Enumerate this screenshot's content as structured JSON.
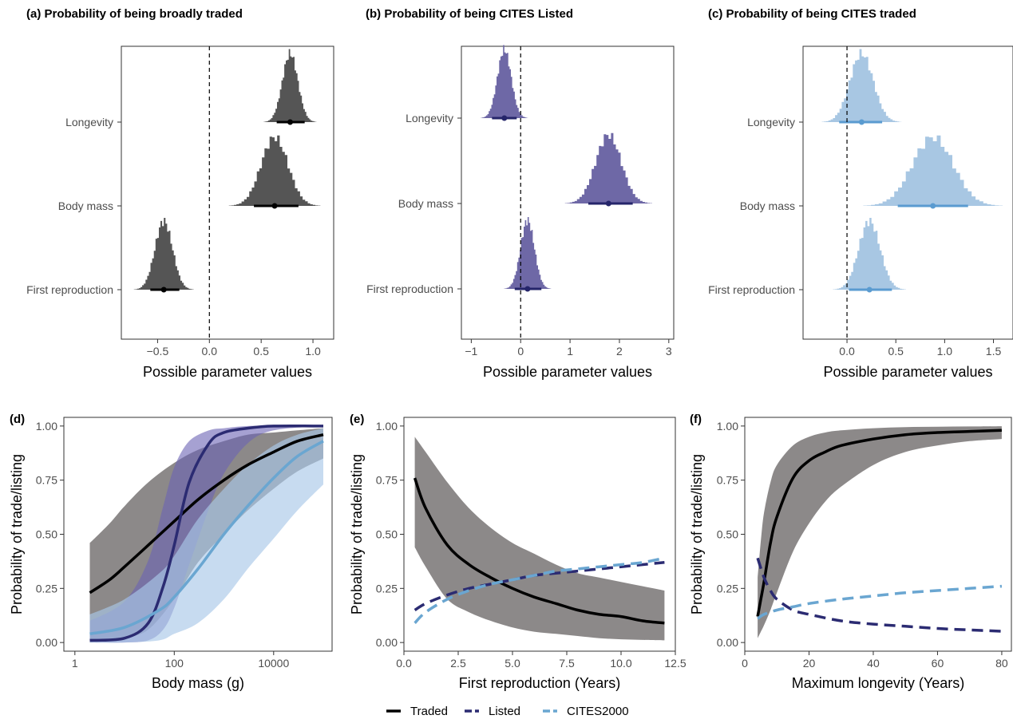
{
  "colors": {
    "traded": "#000000",
    "listed": "#2b2b72",
    "cites2000": "#6aa6d1",
    "hist_a": "#555555",
    "hist_b": "#6e68a6",
    "hist_c": "#a8c7e3",
    "interval_a": "#000000",
    "interval_b": "#25256a",
    "interval_c": "#5a9bd0",
    "ribbon_traded": "#6f6b6b",
    "ribbon_listed": "#6b63b4",
    "ribbon_cites": "#a9c8e8"
  },
  "legend": {
    "items": [
      {
        "label": "Traded",
        "color": "#000000",
        "dash": "solid"
      },
      {
        "label": "Listed",
        "color": "#2b2b72",
        "dash": "dashed"
      },
      {
        "label": "CITES2000",
        "color": "#6aa6d1",
        "dash": "dashed"
      }
    ]
  },
  "chart_data": [
    {
      "id": "a",
      "type": "histogram",
      "title": "(a) Probability of being broadly traded",
      "xlabel": "Possible parameter values",
      "ylabel": "",
      "xlim": [
        -0.85,
        1.2
      ],
      "xticks": [
        -0.5,
        0,
        0.5,
        1
      ],
      "xtick_labels": [
        "−0.5",
        "0.0",
        "0.5",
        "1.0"
      ],
      "reference_line": 0,
      "categories": [
        "Longevity",
        "Body mass",
        "First reproduction"
      ],
      "params": [
        {
          "name": "Longevity",
          "mean": 0.78,
          "sd": 0.075,
          "interval": [
            0.65,
            0.92
          ]
        },
        {
          "name": "Body mass",
          "mean": 0.63,
          "sd": 0.13,
          "interval": [
            0.43,
            0.86
          ]
        },
        {
          "name": "First reproduction",
          "mean": -0.44,
          "sd": 0.085,
          "interval": [
            -0.57,
            -0.29
          ]
        }
      ]
    },
    {
      "id": "b",
      "type": "histogram",
      "title": "(b) Probability of being CITES Listed",
      "xlabel": "Possible parameter values",
      "ylabel": "",
      "xlim": [
        -1.2,
        3.1
      ],
      "xticks": [
        -1,
        0,
        1,
        2,
        3
      ],
      "xtick_labels": [
        "−1",
        "0",
        "1",
        "2",
        "3"
      ],
      "reference_line": 0,
      "categories": [
        "Longevity",
        "Body mass",
        "First reproduction"
      ],
      "params": [
        {
          "name": "Longevity",
          "mean": -0.33,
          "sd": 0.14,
          "interval": [
            -0.58,
            -0.08
          ]
        },
        {
          "name": "Body mass",
          "mean": 1.78,
          "sd": 0.26,
          "interval": [
            1.37,
            2.27
          ]
        },
        {
          "name": "First reproduction",
          "mean": 0.14,
          "sd": 0.14,
          "interval": [
            -0.12,
            0.42
          ]
        }
      ]
    },
    {
      "id": "c",
      "type": "histogram",
      "title": "(c) Probability of being CITES traded",
      "xlabel": "Possible parameter values",
      "ylabel": "",
      "xlim": [
        -0.45,
        1.7
      ],
      "xticks": [
        0,
        0.5,
        1,
        1.5
      ],
      "xtick_labels": [
        "0.0",
        "0.5",
        "1.0",
        "1.5"
      ],
      "reference_line": 0,
      "categories": [
        "Longevity",
        "Body mass",
        "First reproduction"
      ],
      "params": [
        {
          "name": "Longevity",
          "mean": 0.15,
          "sd": 0.12,
          "interval": [
            -0.08,
            0.36
          ]
        },
        {
          "name": "Body mass",
          "mean": 0.88,
          "sd": 0.21,
          "interval": [
            0.52,
            1.24
          ]
        },
        {
          "name": "First reproduction",
          "mean": 0.23,
          "sd": 0.11,
          "interval": [
            0.02,
            0.46
          ]
        }
      ]
    },
    {
      "id": "d",
      "type": "line",
      "label": "(d)",
      "xlabel": "Body mass (g)",
      "ylabel": "Probability of trade/listing",
      "xscale": "log10",
      "xlim": [
        0.6,
        150000
      ],
      "ylim": [
        -0.04,
        1.04
      ],
      "xticks": [
        1,
        100,
        10000
      ],
      "xtick_labels": [
        "1",
        "100",
        "10000"
      ],
      "yticks": [
        0,
        0.25,
        0.5,
        0.75,
        1
      ],
      "ytick_labels": [
        "0.00",
        "0.25",
        "0.50",
        "0.75",
        "1.00"
      ],
      "series": [
        {
          "name": "Traded",
          "line": "solid",
          "x": [
            2,
            5,
            10,
            30,
            100,
            300,
            1000,
            3000,
            10000,
            30000,
            100000
          ],
          "y": [
            0.23,
            0.29,
            0.35,
            0.45,
            0.56,
            0.66,
            0.75,
            0.82,
            0.88,
            0.93,
            0.96
          ],
          "lower": [
            0.0,
            0.01,
            0.02,
            0.06,
            0.2,
            0.37,
            0.5,
            0.61,
            0.71,
            0.79,
            0.85
          ],
          "upper": [
            0.46,
            0.55,
            0.63,
            0.74,
            0.83,
            0.89,
            0.93,
            0.96,
            0.97,
            0.98,
            0.99
          ]
        },
        {
          "name": "Listed",
          "line": "solid",
          "x": [
            2,
            10,
            30,
            60,
            100,
            200,
            500,
            1000,
            3000,
            10000,
            100000
          ],
          "y": [
            0.01,
            0.02,
            0.09,
            0.26,
            0.45,
            0.74,
            0.92,
            0.97,
            0.99,
            1.0,
            1.0
          ],
          "lower": [
            0.0,
            0.0,
            0.01,
            0.06,
            0.16,
            0.36,
            0.62,
            0.78,
            0.92,
            0.98,
            1.0
          ],
          "upper": [
            0.1,
            0.19,
            0.38,
            0.63,
            0.81,
            0.93,
            0.98,
            0.99,
            1.0,
            1.0,
            1.0
          ]
        },
        {
          "name": "CITES2000",
          "line": "solid",
          "x": [
            2,
            10,
            50,
            100,
            300,
            1000,
            3000,
            10000,
            30000,
            100000
          ],
          "y": [
            0.04,
            0.07,
            0.15,
            0.21,
            0.34,
            0.5,
            0.63,
            0.76,
            0.86,
            0.93
          ],
          "lower": [
            0.0,
            0.0,
            0.01,
            0.04,
            0.09,
            0.2,
            0.34,
            0.48,
            0.61,
            0.73
          ],
          "upper": [
            0.13,
            0.2,
            0.32,
            0.4,
            0.57,
            0.71,
            0.82,
            0.91,
            0.96,
            0.99
          ]
        }
      ]
    },
    {
      "id": "e",
      "type": "line",
      "label": "(e)",
      "xlabel": "First reproduction (Years)",
      "ylabel": "Probability of trade/listing",
      "xlim": [
        0,
        12.5
      ],
      "ylim": [
        -0.04,
        1.04
      ],
      "xticks": [
        0,
        2.5,
        5,
        7.5,
        10,
        12.5
      ],
      "xtick_labels": [
        "0.0",
        "2.5",
        "5.0",
        "7.5",
        "10.0",
        "12.5"
      ],
      "yticks": [
        0,
        0.25,
        0.5,
        0.75,
        1
      ],
      "ytick_labels": [
        "0.00",
        "0.25",
        "0.50",
        "0.75",
        "1.00"
      ],
      "series": [
        {
          "name": "Traded",
          "line": "solid",
          "x": [
            0.5,
            1,
            2,
            3,
            4,
            5,
            6,
            7,
            8,
            9,
            10,
            11,
            12
          ],
          "y": [
            0.76,
            0.62,
            0.45,
            0.36,
            0.3,
            0.25,
            0.21,
            0.18,
            0.15,
            0.13,
            0.12,
            0.1,
            0.09
          ],
          "lower": [
            0.44,
            0.35,
            0.2,
            0.14,
            0.1,
            0.07,
            0.05,
            0.04,
            0.03,
            0.02,
            0.015,
            0.012,
            0.01
          ],
          "upper": [
            0.95,
            0.88,
            0.74,
            0.62,
            0.53,
            0.46,
            0.41,
            0.36,
            0.32,
            0.3,
            0.28,
            0.26,
            0.24
          ]
        },
        {
          "name": "Listed",
          "line": "dashed",
          "x": [
            0.5,
            1,
            2,
            3,
            4,
            5,
            6,
            7,
            8,
            9,
            10,
            11,
            12
          ],
          "y": [
            0.15,
            0.18,
            0.22,
            0.25,
            0.27,
            0.29,
            0.31,
            0.32,
            0.33,
            0.34,
            0.35,
            0.36,
            0.37
          ]
        },
        {
          "name": "CITES2000",
          "line": "dashed",
          "x": [
            0.5,
            1,
            2,
            3,
            4,
            5,
            6,
            7,
            8,
            9,
            10,
            11,
            12
          ],
          "y": [
            0.09,
            0.14,
            0.2,
            0.24,
            0.27,
            0.29,
            0.31,
            0.33,
            0.34,
            0.35,
            0.36,
            0.37,
            0.39
          ]
        }
      ]
    },
    {
      "id": "f",
      "type": "line",
      "label": "(f)",
      "xlabel": "Maximum longevity (Years)",
      "ylabel": "Probability of trade/listing",
      "xlim": [
        0,
        83
      ],
      "ylim": [
        -0.04,
        1.04
      ],
      "xticks": [
        0,
        20,
        40,
        60,
        80
      ],
      "xtick_labels": [
        "0",
        "20",
        "40",
        "60",
        "80"
      ],
      "yticks": [
        0,
        0.25,
        0.5,
        0.75,
        1
      ],
      "ytick_labels": [
        "0.00",
        "0.25",
        "0.50",
        "0.75",
        "1.00"
      ],
      "series": [
        {
          "name": "Traded",
          "line": "solid",
          "x": [
            4,
            5,
            6,
            8,
            10,
            15,
            20,
            25,
            30,
            40,
            50,
            60,
            70,
            80
          ],
          "y": [
            0.12,
            0.2,
            0.28,
            0.46,
            0.58,
            0.76,
            0.84,
            0.88,
            0.91,
            0.94,
            0.96,
            0.97,
            0.975,
            0.98
          ],
          "lower": [
            0.02,
            0.05,
            0.08,
            0.15,
            0.23,
            0.42,
            0.55,
            0.65,
            0.72,
            0.82,
            0.88,
            0.91,
            0.93,
            0.94
          ],
          "upper": [
            0.3,
            0.47,
            0.6,
            0.74,
            0.82,
            0.91,
            0.95,
            0.97,
            0.98,
            0.99,
            0.995,
            0.997,
            0.998,
            0.999
          ]
        },
        {
          "name": "Listed",
          "line": "dashed",
          "x": [
            4,
            6,
            8,
            10,
            15,
            20,
            30,
            40,
            50,
            60,
            70,
            80
          ],
          "y": [
            0.39,
            0.3,
            0.24,
            0.2,
            0.15,
            0.13,
            0.1,
            0.085,
            0.075,
            0.065,
            0.058,
            0.052
          ]
        },
        {
          "name": "CITES2000",
          "line": "dashed",
          "x": [
            4,
            6,
            10,
            15,
            20,
            30,
            40,
            50,
            60,
            70,
            80
          ],
          "y": [
            0.11,
            0.13,
            0.15,
            0.165,
            0.18,
            0.2,
            0.215,
            0.23,
            0.24,
            0.25,
            0.26
          ]
        }
      ]
    }
  ]
}
